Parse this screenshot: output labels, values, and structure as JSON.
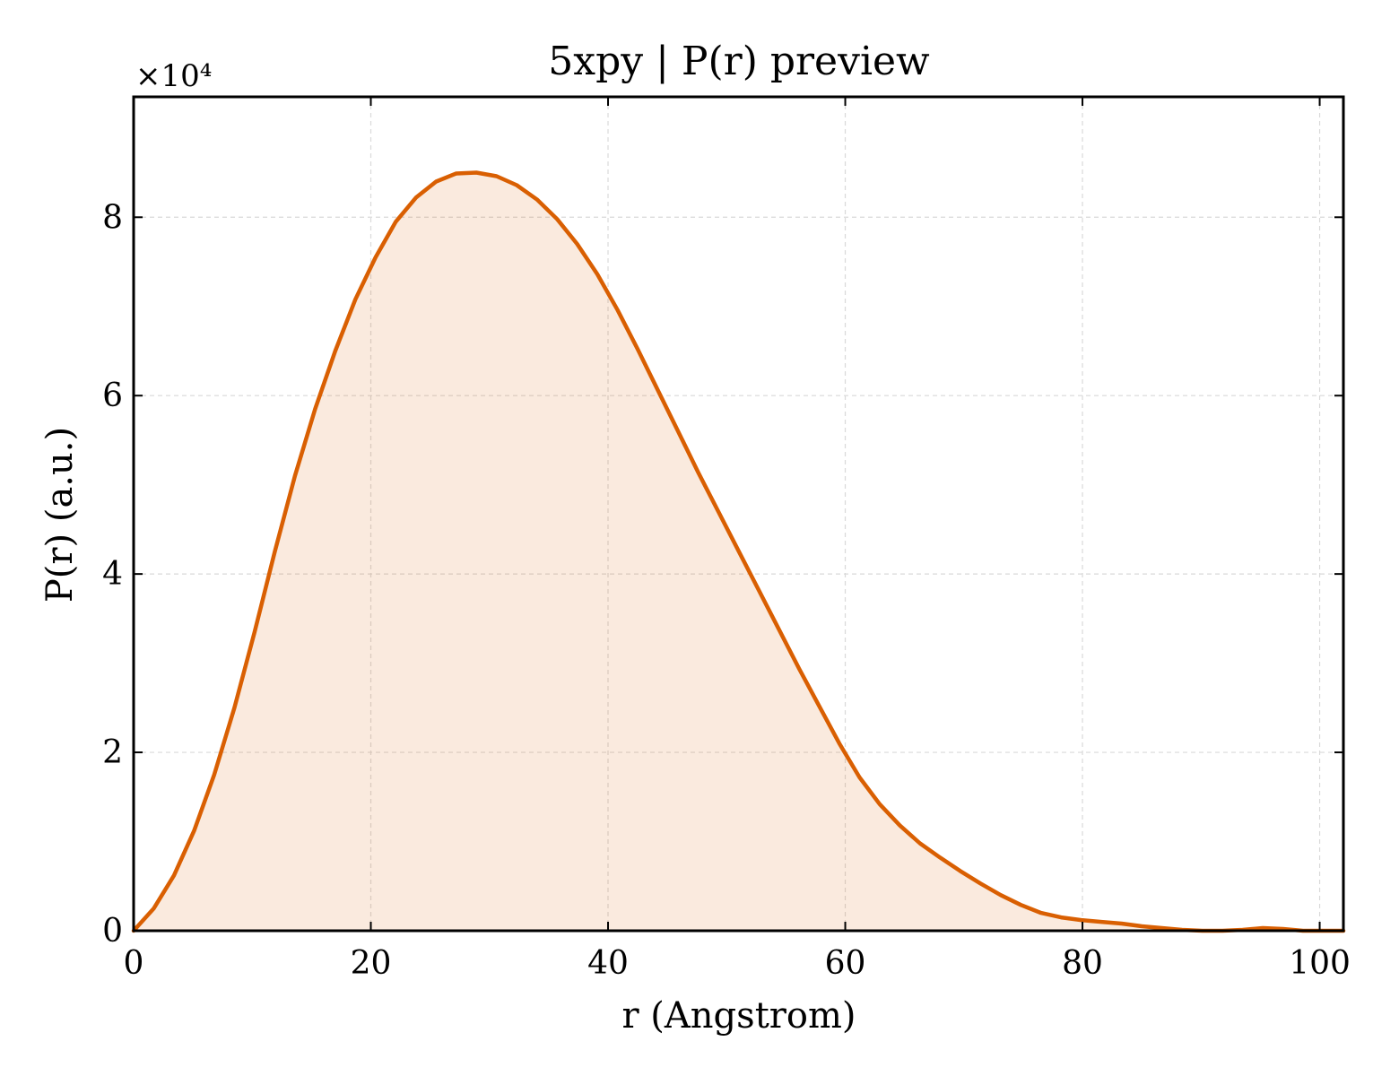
{
  "chart_data": {
    "type": "area",
    "title": "5xpy | P(r) preview",
    "xlabel": "r (Angstrom)",
    "ylabel": "P(r) (a.u.)",
    "y_multiplier_label": "×10⁴",
    "xlim": [
      0,
      102
    ],
    "ylim": [
      0,
      9.35
    ],
    "x_ticks": [
      0,
      20,
      40,
      60,
      80,
      100
    ],
    "y_ticks": [
      0,
      2,
      4,
      6,
      8
    ],
    "x_tick_labels": [
      "0",
      "20",
      "40",
      "60",
      "80",
      "100"
    ],
    "y_tick_labels": [
      "0",
      "2",
      "4",
      "6",
      "8"
    ],
    "grid": true,
    "series": [
      {
        "color": "#d95f02",
        "fill_color": "#d95f02",
        "fill_opacity": 0.13,
        "x": [
          0,
          1.7,
          3.4,
          5.1,
          6.8,
          8.5,
          10.2,
          11.9,
          13.6,
          15.3,
          17.0,
          18.7,
          20.4,
          22.1,
          23.8,
          25.5,
          27.2,
          28.9,
          30.6,
          32.3,
          34.0,
          35.7,
          37.4,
          39.1,
          40.8,
          42.5,
          44.2,
          45.9,
          47.6,
          49.3,
          51.0,
          52.7,
          54.4,
          56.1,
          57.8,
          59.5,
          61.2,
          62.9,
          64.6,
          66.3,
          68.0,
          69.7,
          71.4,
          73.1,
          74.8,
          76.5,
          78.2,
          79.9,
          81.6,
          83.3,
          85.0,
          86.7,
          88.4,
          90.1,
          91.8,
          93.5,
          95.2,
          96.9,
          98.6,
          100.3,
          102.0
        ],
        "y": [
          0,
          0.25,
          0.62,
          1.12,
          1.75,
          2.5,
          3.35,
          4.25,
          5.1,
          5.85,
          6.5,
          7.08,
          7.55,
          7.95,
          8.22,
          8.4,
          8.49,
          8.5,
          8.46,
          8.36,
          8.2,
          7.98,
          7.7,
          7.36,
          6.96,
          6.52,
          6.06,
          5.6,
          5.14,
          4.7,
          4.26,
          3.82,
          3.38,
          2.94,
          2.52,
          2.1,
          1.72,
          1.42,
          1.18,
          0.98,
          0.82,
          0.67,
          0.53,
          0.4,
          0.29,
          0.2,
          0.15,
          0.12,
          0.1,
          0.08,
          0.05,
          0.03,
          0.01,
          0.0,
          0.0,
          0.01,
          0.03,
          0.02,
          0.0,
          0.0,
          0.0
        ]
      }
    ]
  }
}
